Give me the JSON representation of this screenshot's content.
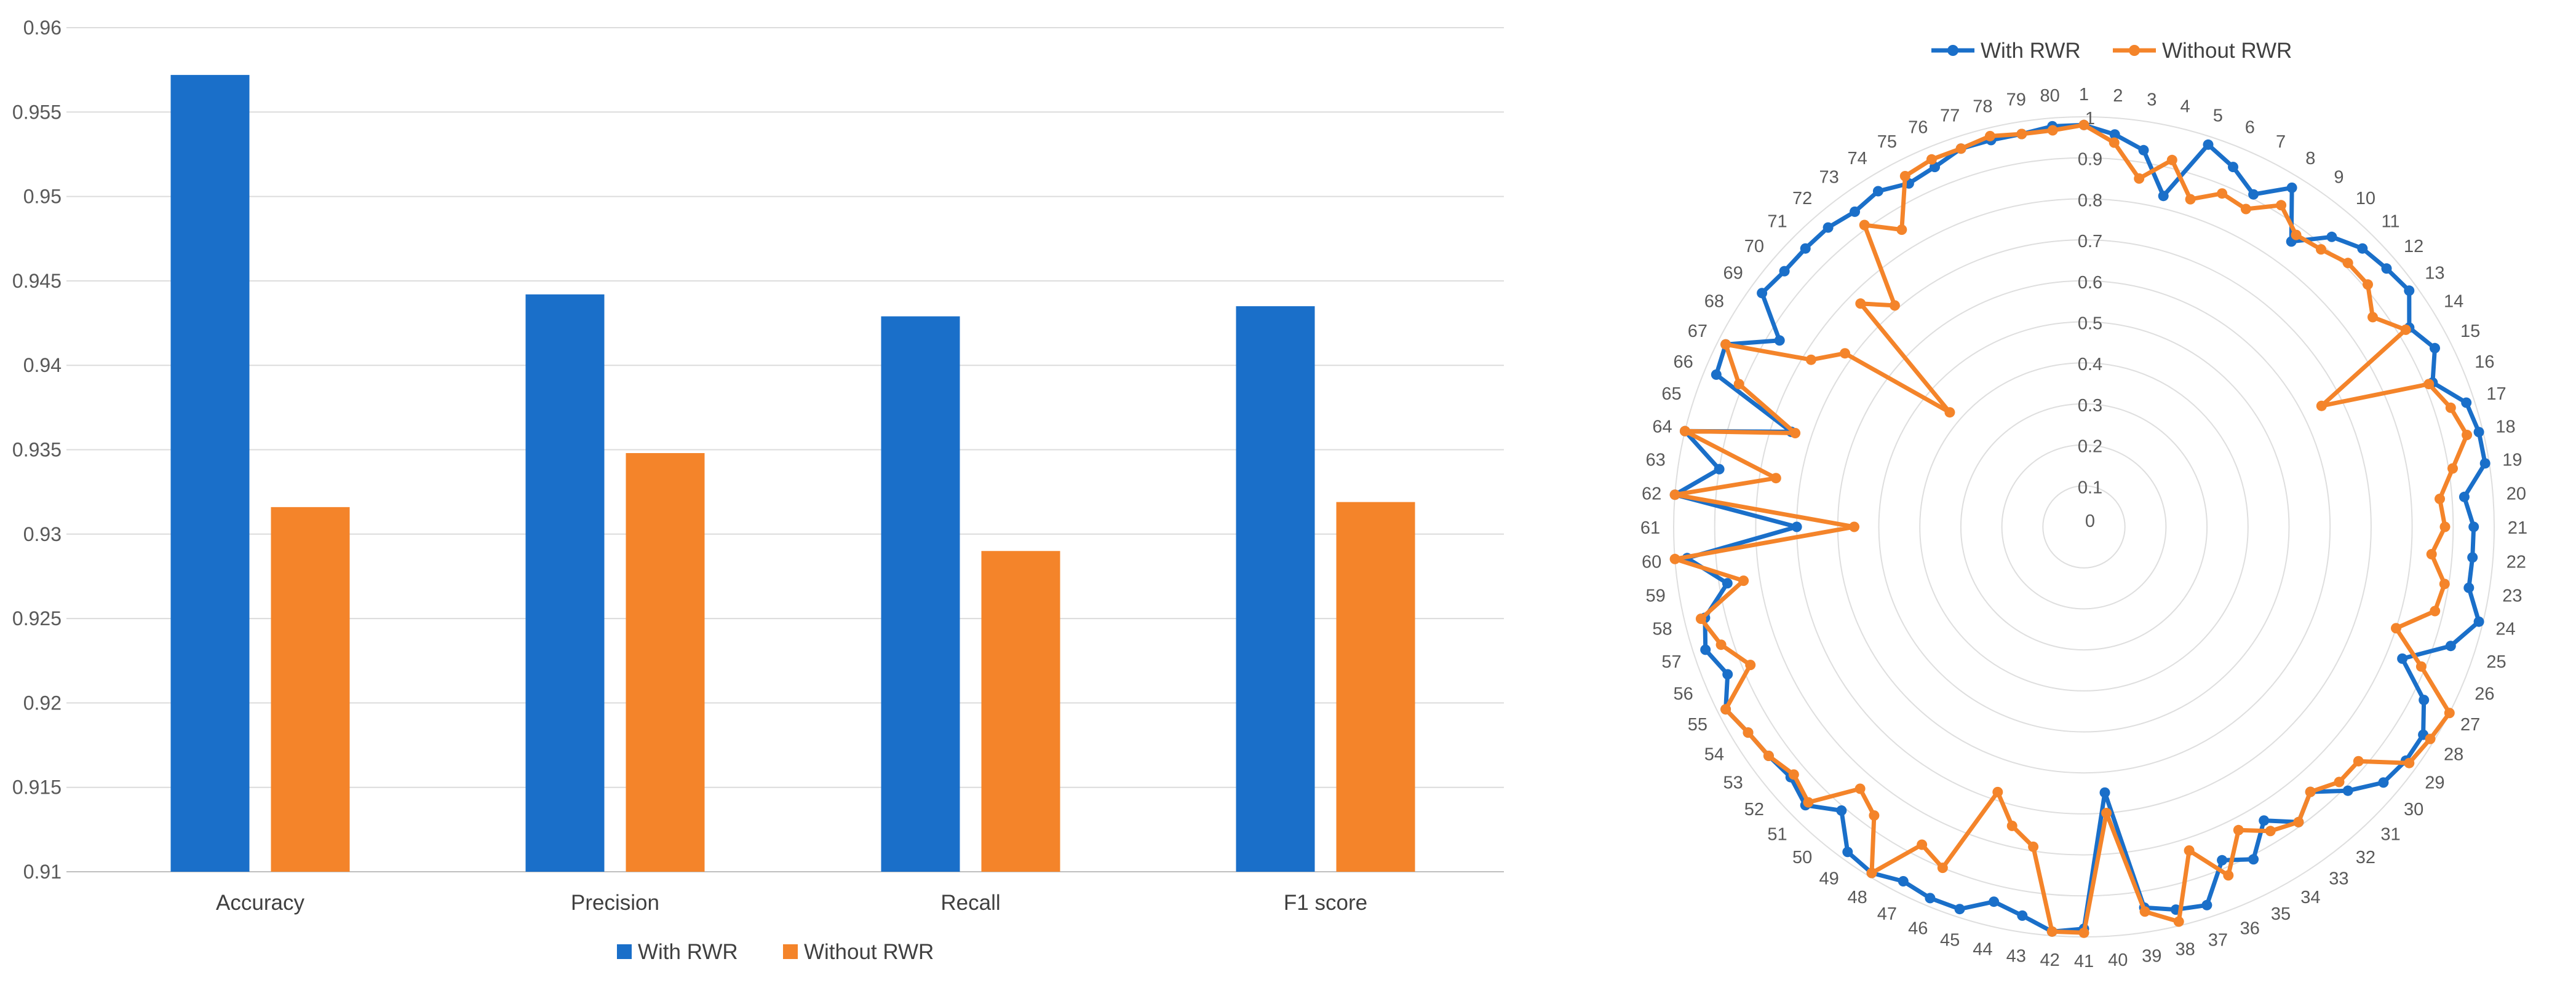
{
  "chart_data": [
    {
      "type": "bar",
      "title": "",
      "xlabel": "",
      "ylabel": "",
      "categories": [
        "Accuracy",
        "Precision",
        "Recall",
        "F1 score"
      ],
      "series": [
        {
          "name": "With RWR",
          "color": "#1a6fc9",
          "values": [
            0.9572,
            0.9442,
            0.9429,
            0.9435
          ]
        },
        {
          "name": "Without RWR",
          "color": "#f4842a",
          "values": [
            0.9316,
            0.9348,
            0.929,
            0.9319
          ]
        }
      ],
      "ylim": [
        0.91,
        0.96
      ],
      "yticks": [
        "0.91",
        "0.915",
        "0.92",
        "0.925",
        "0.93",
        "0.935",
        "0.94",
        "0.945",
        "0.95",
        "0.955",
        "0.96"
      ],
      "grid": true,
      "legend": "bottom-center"
    },
    {
      "type": "radar",
      "title": "",
      "axes": [
        "1",
        "2",
        "3",
        "4",
        "5",
        "6",
        "7",
        "8",
        "9",
        "10",
        "11",
        "12",
        "13",
        "14",
        "15",
        "16",
        "17",
        "18",
        "19",
        "20",
        "21",
        "22",
        "23",
        "24",
        "25",
        "26",
        "27",
        "28",
        "29",
        "30",
        "31",
        "32",
        "33",
        "34",
        "35",
        "36",
        "37",
        "38",
        "39",
        "40",
        "41",
        "42",
        "43",
        "44",
        "45",
        "46",
        "47",
        "48",
        "49",
        "50",
        "51",
        "52",
        "53",
        "54",
        "55",
        "56",
        "57",
        "58",
        "59",
        "60",
        "61",
        "62",
        "63",
        "64",
        "65",
        "66",
        "67",
        "68",
        "69",
        "70",
        "71",
        "72",
        "73",
        "74",
        "75",
        "76",
        "77",
        "78",
        "79",
        "80"
      ],
      "rlim": [
        0,
        1
      ],
      "rticks": [
        "0",
        "0.1",
        "0.2",
        "0.3",
        "0.4",
        "0.5",
        "0.6",
        "0.7",
        "0.8",
        "0.9",
        "1"
      ],
      "series": [
        {
          "name": "With RWR",
          "color": "#1a6fc9",
          "values": [
            0.98,
            0.96,
            0.93,
            0.83,
            0.98,
            0.95,
            0.91,
            0.97,
            0.86,
            0.93,
            0.96,
            0.97,
            0.98,
            0.93,
            0.96,
            0.92,
            0.98,
            0.99,
            0.99,
            0.93,
            0.95,
            0.95,
            0.95,
            0.99,
            0.94,
            0.84,
            0.93,
            0.97,
            0.97,
            0.96,
            0.91,
            0.85,
            0.89,
            0.84,
            0.91,
            0.88,
            0.97,
            0.96,
            0.94,
            0.65,
            0.98,
            0.99,
            0.96,
            0.94,
            0.98,
            0.98,
            0.97,
            0.99,
            0.98,
            0.91,
            0.96,
            0.94,
            0.95,
            0.96,
            0.98,
            0.94,
            0.97,
            0.95,
            0.88,
            0.97,
            0.7,
            1.0,
            0.9,
            1.0,
            0.75,
            0.97,
            0.98,
            0.87,
            0.97,
            0.96,
            0.96,
            0.96,
            0.95,
            0.96,
            0.94,
            0.95,
            0.97,
            0.97,
            0.97,
            0.98
          ]
        },
        {
          "name": "Without RWR",
          "color": "#f4842a",
          "values": [
            0.98,
            0.94,
            0.86,
            0.92,
            0.84,
            0.88,
            0.87,
            0.92,
            0.88,
            0.89,
            0.91,
            0.91,
            0.87,
            0.92,
            0.65,
            0.91,
            0.94,
            0.96,
            0.91,
            0.87,
            0.88,
            0.85,
            0.89,
            0.88,
            0.8,
            0.89,
            1.0,
            0.99,
            0.98,
            0.88,
            0.88,
            0.85,
            0.89,
            0.87,
            0.83,
            0.92,
            0.83,
            0.99,
            0.95,
            0.7,
            0.99,
            0.99,
            0.79,
            0.75,
            0.68,
            0.9,
            0.87,
            0.99,
            0.87,
            0.84,
            0.95,
            0.93,
            0.95,
            0.96,
            0.98,
            0.88,
            0.93,
            0.96,
            0.84,
            1.0,
            0.56,
            1.0,
            0.76,
            1.0,
            0.74,
            0.91,
            0.98,
            0.78,
            0.72,
            0.43,
            0.77,
            0.71,
            0.91,
            0.85,
            0.96,
            0.97,
            0.97,
            0.98,
            0.97,
            0.97
          ]
        }
      ],
      "legend": "top-center"
    }
  ]
}
